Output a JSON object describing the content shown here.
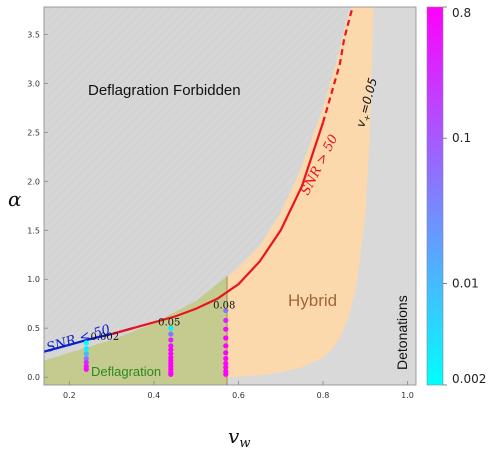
{
  "chart_data": {
    "type": "line",
    "xlabel": "v",
    "xlabel_sub": "w",
    "ylabel": "α",
    "xlim": [
      0.14,
      1.02
    ],
    "ylim": [
      -0.08,
      3.78
    ],
    "xticks": [
      0.2,
      0.4,
      0.6,
      0.8,
      1.0
    ],
    "xtick_labels": [
      "0.2",
      "0.4",
      "0.6",
      "0.8",
      "1.0"
    ],
    "yticks": [
      0.0,
      0.5,
      1.0,
      1.5,
      2.0,
      2.5,
      3.0,
      3.5
    ],
    "ytick_labels": [
      "0.0",
      "0.5",
      "1.0",
      "1.5",
      "2.0",
      "2.5",
      "3.0",
      "3.5"
    ],
    "regions": {
      "forbidden": "Deflagration Forbidden",
      "hybrid": "Hybrid",
      "deflagration": "Deflagration",
      "detonations": "Detonations"
    },
    "curve_labels": {
      "snr_low": "SNR < 50",
      "snr_high": "SNR > 50",
      "vplus": "v",
      "vplus_sub": "+",
      "vplus_val": "=0.05"
    },
    "snr_curve": {
      "x": [
        0.14,
        0.2,
        0.25,
        0.3,
        0.35,
        0.4,
        0.45,
        0.5,
        0.55,
        0.6,
        0.65,
        0.7,
        0.75,
        0.8,
        0.82,
        0.84,
        0.85,
        0.86,
        0.87
      ],
      "y": [
        0.26,
        0.33,
        0.39,
        0.44,
        0.5,
        0.56,
        0.62,
        0.7,
        0.8,
        0.95,
        1.18,
        1.5,
        1.95,
        2.6,
        2.9,
        3.2,
        3.45,
        3.62,
        3.78
      ],
      "low_color": "#0a1fcf",
      "high_color": "#e8141e",
      "switch_x": 0.36
    },
    "hybrid_band": {
      "left_x": [
        0.573,
        0.6,
        0.65,
        0.7,
        0.75,
        0.8,
        0.82,
        0.84,
        0.85,
        0.86,
        0.87,
        0.875
      ],
      "left_y": [
        1.02,
        1.12,
        1.34,
        1.68,
        2.15,
        2.75,
        3.05,
        3.35,
        3.55,
        3.7,
        3.78,
        3.78
      ],
      "right_x": [
        0.573,
        0.6,
        0.65,
        0.7,
        0.75,
        0.8,
        0.82,
        0.84,
        0.86,
        0.88,
        0.9,
        0.91,
        0.92
      ],
      "right_y": [
        0.0,
        0.005,
        0.02,
        0.05,
        0.1,
        0.2,
        0.28,
        0.4,
        0.6,
        0.95,
        1.65,
        2.4,
        3.78
      ],
      "color": "#fcd9ad"
    },
    "deflagration_region": {
      "x_max": 0.573,
      "top_x": [
        0.14,
        0.2,
        0.3,
        0.4,
        0.5,
        0.573
      ],
      "top_y": [
        0.17,
        0.25,
        0.38,
        0.55,
        0.78,
        1.03
      ],
      "color": "#c4c98a"
    },
    "scatter": {
      "colorbar_label": "",
      "points": [
        {
          "x": 0.24,
          "y": 0.35,
          "c": 0.002
        },
        {
          "x": 0.24,
          "y": 0.29,
          "c": 0.003
        },
        {
          "x": 0.24,
          "y": 0.24,
          "c": 0.01
        },
        {
          "x": 0.24,
          "y": 0.19,
          "c": 0.05
        },
        {
          "x": 0.24,
          "y": 0.15,
          "c": 0.3
        },
        {
          "x": 0.24,
          "y": 0.11,
          "c": 0.5
        },
        {
          "x": 0.24,
          "y": 0.08,
          "c": 0.6
        },
        {
          "x": 0.44,
          "y": 0.5,
          "c": 0.003
        },
        {
          "x": 0.44,
          "y": 0.44,
          "c": 0.05
        },
        {
          "x": 0.44,
          "y": 0.38,
          "c": 0.4
        },
        {
          "x": 0.44,
          "y": 0.32,
          "c": 0.6
        },
        {
          "x": 0.44,
          "y": 0.28,
          "c": 0.7
        },
        {
          "x": 0.44,
          "y": 0.24,
          "c": 0.7
        },
        {
          "x": 0.44,
          "y": 0.2,
          "c": 0.8
        },
        {
          "x": 0.44,
          "y": 0.17,
          "c": 0.8
        },
        {
          "x": 0.44,
          "y": 0.14,
          "c": 0.8
        },
        {
          "x": 0.44,
          "y": 0.11,
          "c": 0.8
        },
        {
          "x": 0.44,
          "y": 0.08,
          "c": 0.8
        },
        {
          "x": 0.44,
          "y": 0.05,
          "c": 0.8
        },
        {
          "x": 0.44,
          "y": 0.03,
          "c": 0.8
        },
        {
          "x": 0.57,
          "y": 0.68,
          "c": 0.05
        },
        {
          "x": 0.57,
          "y": 0.58,
          "c": 0.4
        },
        {
          "x": 0.57,
          "y": 0.49,
          "c": 0.7
        },
        {
          "x": 0.57,
          "y": 0.4,
          "c": 0.8
        },
        {
          "x": 0.57,
          "y": 0.32,
          "c": 0.8
        },
        {
          "x": 0.57,
          "y": 0.25,
          "c": 0.8
        },
        {
          "x": 0.57,
          "y": 0.19,
          "c": 0.8
        },
        {
          "x": 0.57,
          "y": 0.14,
          "c": 0.8
        },
        {
          "x": 0.57,
          "y": 0.1,
          "c": 0.8
        },
        {
          "x": 0.57,
          "y": 0.06,
          "c": 0.8
        },
        {
          "x": 0.57,
          "y": 0.03,
          "c": 0.8
        }
      ]
    },
    "point_labels": [
      {
        "text": "0.002",
        "x": 0.25,
        "y": 0.38
      },
      {
        "text": "0.05",
        "x": 0.41,
        "y": 0.53
      },
      {
        "text": "0.08",
        "x": 0.54,
        "y": 0.7
      }
    ],
    "colorbar": {
      "scale": "log",
      "min": 0.002,
      "max": 0.8,
      "ticks": [
        0.002,
        0.01,
        0.1,
        0.8
      ],
      "tick_labels": [
        "0.002",
        "0.01",
        "0.1",
        "0.8"
      ],
      "colors": [
        "#00ffff",
        "#ff00ff"
      ]
    },
    "colors": {
      "forbidden_bg": "#d6d6d6",
      "detonation_bg": "#d9d9d9",
      "region_text_forbidden": "#111111",
      "region_text_hybrid": "#a0673a",
      "region_text_deflag": "#2b8a1e"
    }
  }
}
